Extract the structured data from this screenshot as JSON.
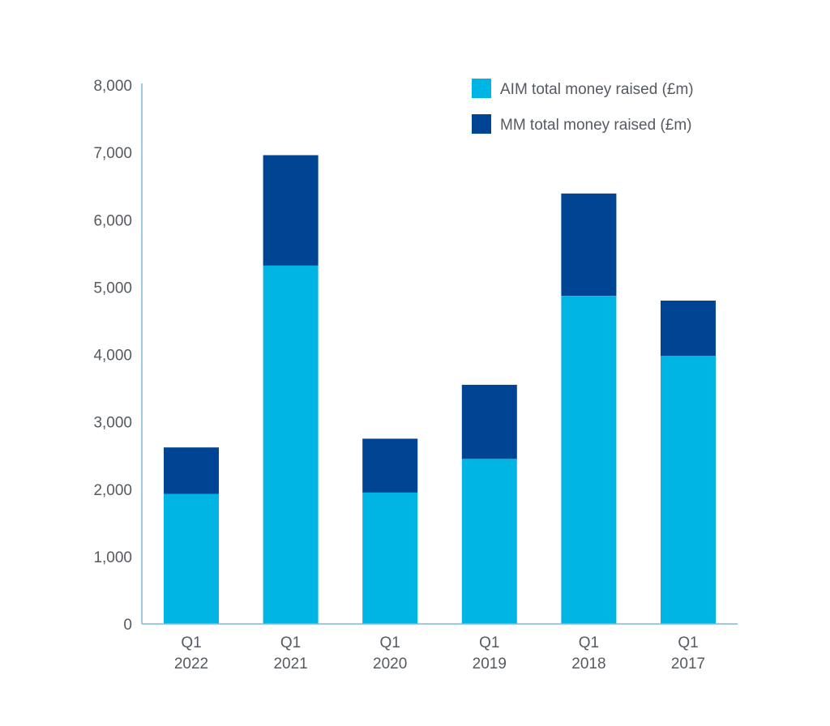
{
  "chart_data": {
    "type": "bar",
    "stacked": true,
    "categories": [
      [
        "Q1",
        "2022"
      ],
      [
        "Q1",
        "2021"
      ],
      [
        "Q1",
        "2020"
      ],
      [
        "Q1",
        "2019"
      ],
      [
        "Q1",
        "2018"
      ],
      [
        "Q1",
        "2017"
      ]
    ],
    "series": [
      {
        "name": "AIM total money raised (£m)",
        "color": "#00b4e3",
        "values": [
          1930,
          5320,
          1950,
          2450,
          4870,
          3980
        ]
      },
      {
        "name": "MM total money raised (£m)",
        "color": "#004494",
        "values": [
          690,
          1640,
          800,
          1100,
          1520,
          820
        ]
      }
    ],
    "ylim": [
      0,
      8000
    ],
    "yticks": [
      "0",
      "1,000",
      "2,000",
      "3,000",
      "4,000",
      "5,000",
      "6,000",
      "7,000",
      "8,000"
    ],
    "ytick_values": [
      0,
      1000,
      2000,
      3000,
      4000,
      5000,
      6000,
      7000,
      8000
    ],
    "legend_position": "top-right",
    "axis_color": "#7fb8e0",
    "grid": false
  }
}
